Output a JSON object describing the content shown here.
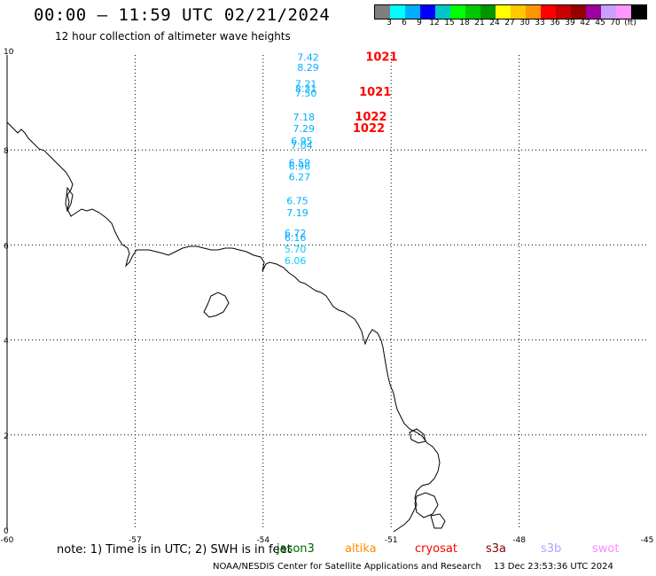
{
  "title": "00:00 – 11:59 UTC 02/21/2024",
  "subtitle": "12 hour collection of altimeter wave heights",
  "colorbar": {
    "colors": [
      "#7f7f7f",
      "#00ffff",
      "#00b0ff",
      "#0000ff",
      "#00c8c8",
      "#00ff00",
      "#00c800",
      "#009600",
      "#ffff00",
      "#ffc800",
      "#ff9600",
      "#ff0000",
      "#c80000",
      "#960000",
      "#a000a0",
      "#c8a0ff",
      "#ff96ff",
      "#000000"
    ],
    "labels": [
      "3",
      "6",
      "9",
      "12",
      "15",
      "18",
      "21",
      "24",
      "27",
      "30",
      "33",
      "36",
      "39",
      "42",
      "45",
      "70",
      "(ft)"
    ]
  },
  "map": {
    "lon_ticks": [
      "-60",
      "-57",
      "-54",
      "-51",
      "-48",
      "-45"
    ],
    "lat_ticks": [
      "10",
      "8",
      "6",
      "4",
      "2",
      "0"
    ],
    "lon_range": [
      -60,
      -45
    ],
    "lat_range": [
      0,
      10
    ],
    "grid": "dotted",
    "observations": [
      {
        "value": "7.42",
        "color": "#00b0ff",
        "lon": -53.2,
        "lat": 9.88
      },
      {
        "value": "8.29",
        "color": "#00b0ff",
        "lon": -53.2,
        "lat": 9.66
      },
      {
        "value": "7.21",
        "color": "#00b0ff",
        "lon": -53.25,
        "lat": 9.32
      },
      {
        "value": "8.31",
        "color": "#00b0ff",
        "lon": -53.25,
        "lat": 9.22
      },
      {
        "value": "7.50",
        "color": "#00b0ff",
        "lon": -53.25,
        "lat": 9.12
      },
      {
        "value": "7.18",
        "color": "#00b0ff",
        "lon": -53.3,
        "lat": 8.62
      },
      {
        "value": "7.29",
        "color": "#00b0ff",
        "lon": -53.3,
        "lat": 8.38
      },
      {
        "value": "6.95",
        "color": "#00b0ff",
        "lon": -53.35,
        "lat": 8.12
      },
      {
        "value": "7.04",
        "color": "#00b0ff",
        "lon": -53.35,
        "lat": 8.02
      },
      {
        "value": "6.59",
        "color": "#00b0ff",
        "lon": -53.4,
        "lat": 7.66
      },
      {
        "value": "6.96",
        "color": "#00b0ff",
        "lon": -53.4,
        "lat": 7.58
      },
      {
        "value": "6.27",
        "color": "#00b0ff",
        "lon": -53.4,
        "lat": 7.36
      },
      {
        "value": "6.75",
        "color": "#00b0ff",
        "lon": -53.45,
        "lat": 6.86
      },
      {
        "value": "7.19",
        "color": "#00b0ff",
        "lon": -53.45,
        "lat": 6.6
      },
      {
        "value": "6.72",
        "color": "#00b0ff",
        "lon": -53.5,
        "lat": 6.18
      },
      {
        "value": "6.16",
        "color": "#00b0ff",
        "lon": -53.5,
        "lat": 6.08
      },
      {
        "value": "5.70",
        "color": "#00d0ff",
        "lon": -53.5,
        "lat": 5.84
      },
      {
        "value": "6.06",
        "color": "#00d0ff",
        "lon": -53.5,
        "lat": 5.6
      }
    ],
    "pressure_labels": [
      {
        "value": "1021",
        "color": "#ff0000",
        "lon": -51.6,
        "lat": 9.88
      },
      {
        "value": "1021",
        "color": "#ff0000",
        "lon": -51.75,
        "lat": 9.14
      },
      {
        "value": "1022",
        "color": "#ff0000",
        "lon": -51.85,
        "lat": 8.62
      },
      {
        "value": "1022",
        "color": "#ff0000",
        "lon": -51.9,
        "lat": 8.38
      }
    ]
  },
  "note": "note:  1) Time is in UTC;  2) SWH is in feet",
  "satellites": [
    {
      "name": "jason3",
      "color": "#006400"
    },
    {
      "name": "altika",
      "color": "#ff8c00"
    },
    {
      "name": "cryosat",
      "color": "#ff0000"
    },
    {
      "name": "s3a",
      "color": "#8b0000"
    },
    {
      "name": "s3b",
      "color": "#b0a0ff"
    },
    {
      "name": "swot",
      "color": "#ff88ff"
    }
  ],
  "footer": {
    "credit": "NOAA/NESDIS Center for Satellite Applications and Research",
    "timestamp": "13 Dec 23:53:36 UTC 2024"
  }
}
